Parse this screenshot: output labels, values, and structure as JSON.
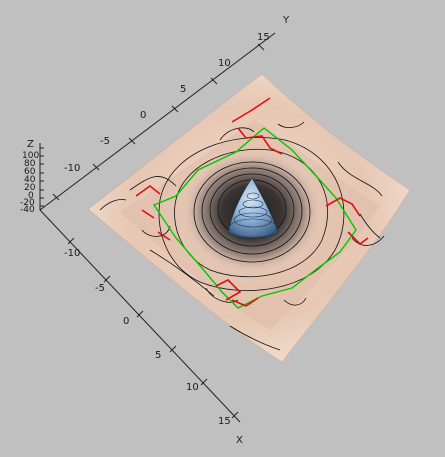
{
  "axes": {
    "y": {
      "title": "Y",
      "ticks": [
        "15",
        "10",
        "5",
        "0",
        "-5",
        "-10"
      ]
    },
    "x": {
      "title": "X",
      "ticks": [
        "-10",
        "-5",
        "0",
        "5",
        "10",
        "15"
      ]
    },
    "z": {
      "title": "Z",
      "ticks": [
        "100",
        "80",
        "60",
        "40",
        "20",
        "0",
        "-20",
        "-40"
      ]
    }
  },
  "colors": {
    "background": "#c0c0c0",
    "surface_light": "#f3e2d6",
    "surface_mid": "#d9b8a6",
    "peak_shadow": "#2a2a2a",
    "peak_blue": "#8fb3d9",
    "contour": "#111111",
    "green_curve": "#00c800",
    "red_curve": "#e01010"
  }
}
